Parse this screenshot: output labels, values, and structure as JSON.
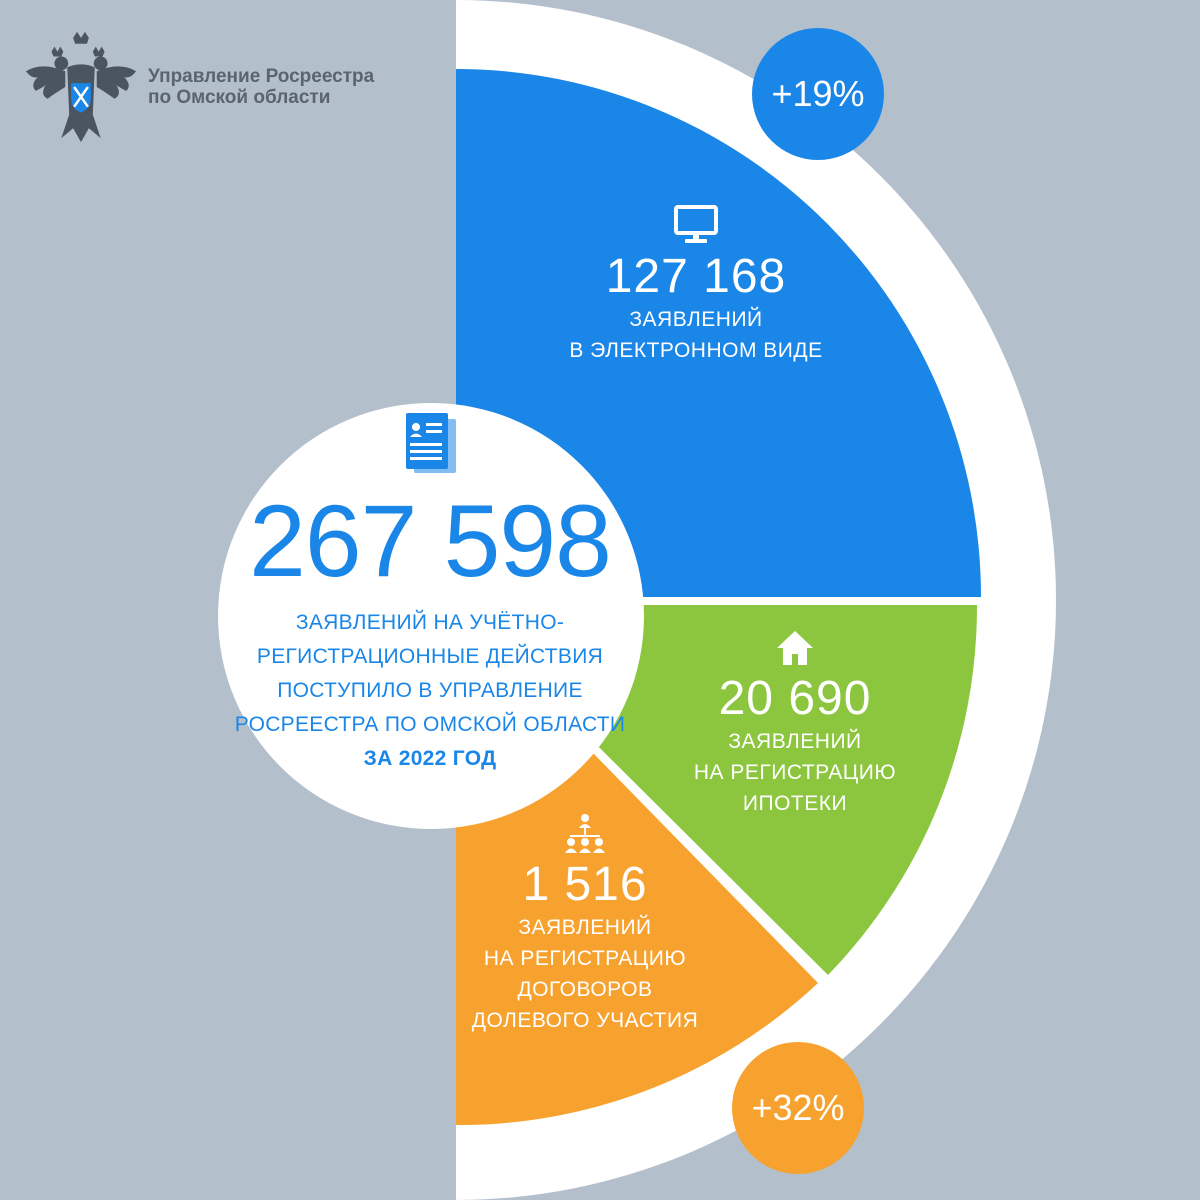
{
  "colors": {
    "background": "#b3bfca",
    "blue": "#1a86e8",
    "green": "#8cc63f",
    "orange": "#f7a22f",
    "white": "#ffffff"
  },
  "header": {
    "org_line1": "Управление Росреестра",
    "org_line2": "по Омской области",
    "emblem_icon": "double-headed-eagle-emblem"
  },
  "total": {
    "value": "267 598",
    "label_lines": [
      "ЗАЯВЛЕНИЙ НА УЧЁТНО-",
      "РЕГИСТРАЦИОННЫЕ ДЕЙСТВИЯ",
      "ПОСТУПИЛО В УПРАВЛЕНИЕ",
      "РОСРЕЕСТРА ПО ОМСКОЙ ОБЛАСТИ"
    ],
    "period": "ЗА 2022 ГОД",
    "icon": "document-icon"
  },
  "segments": [
    {
      "key": "electronic",
      "value": "127 168",
      "label_lines": [
        "ЗАЯВЛЕНИЙ",
        "В ЭЛЕКТРОННОМ ВИДЕ"
      ],
      "icon": "monitor-icon",
      "color": "#1a86e8",
      "change": "+19%"
    },
    {
      "key": "mortgage",
      "value": "20 690",
      "label_lines": [
        "ЗАЯВЛЕНИЙ",
        "НА РЕГИСТРАЦИЮ",
        "ИПОТЕКИ"
      ],
      "icon": "house-icon",
      "color": "#8cc63f"
    },
    {
      "key": "equity",
      "value": "1 516",
      "label_lines": [
        "ЗАЯВЛЕНИЙ",
        "НА РЕГИСТРАЦИЮ",
        "ДОГОВОРОВ",
        "ДОЛЕВОГО УЧАСТИЯ"
      ],
      "icon": "people-network-icon",
      "color": "#f7a22f",
      "change": "+32%"
    }
  ]
}
